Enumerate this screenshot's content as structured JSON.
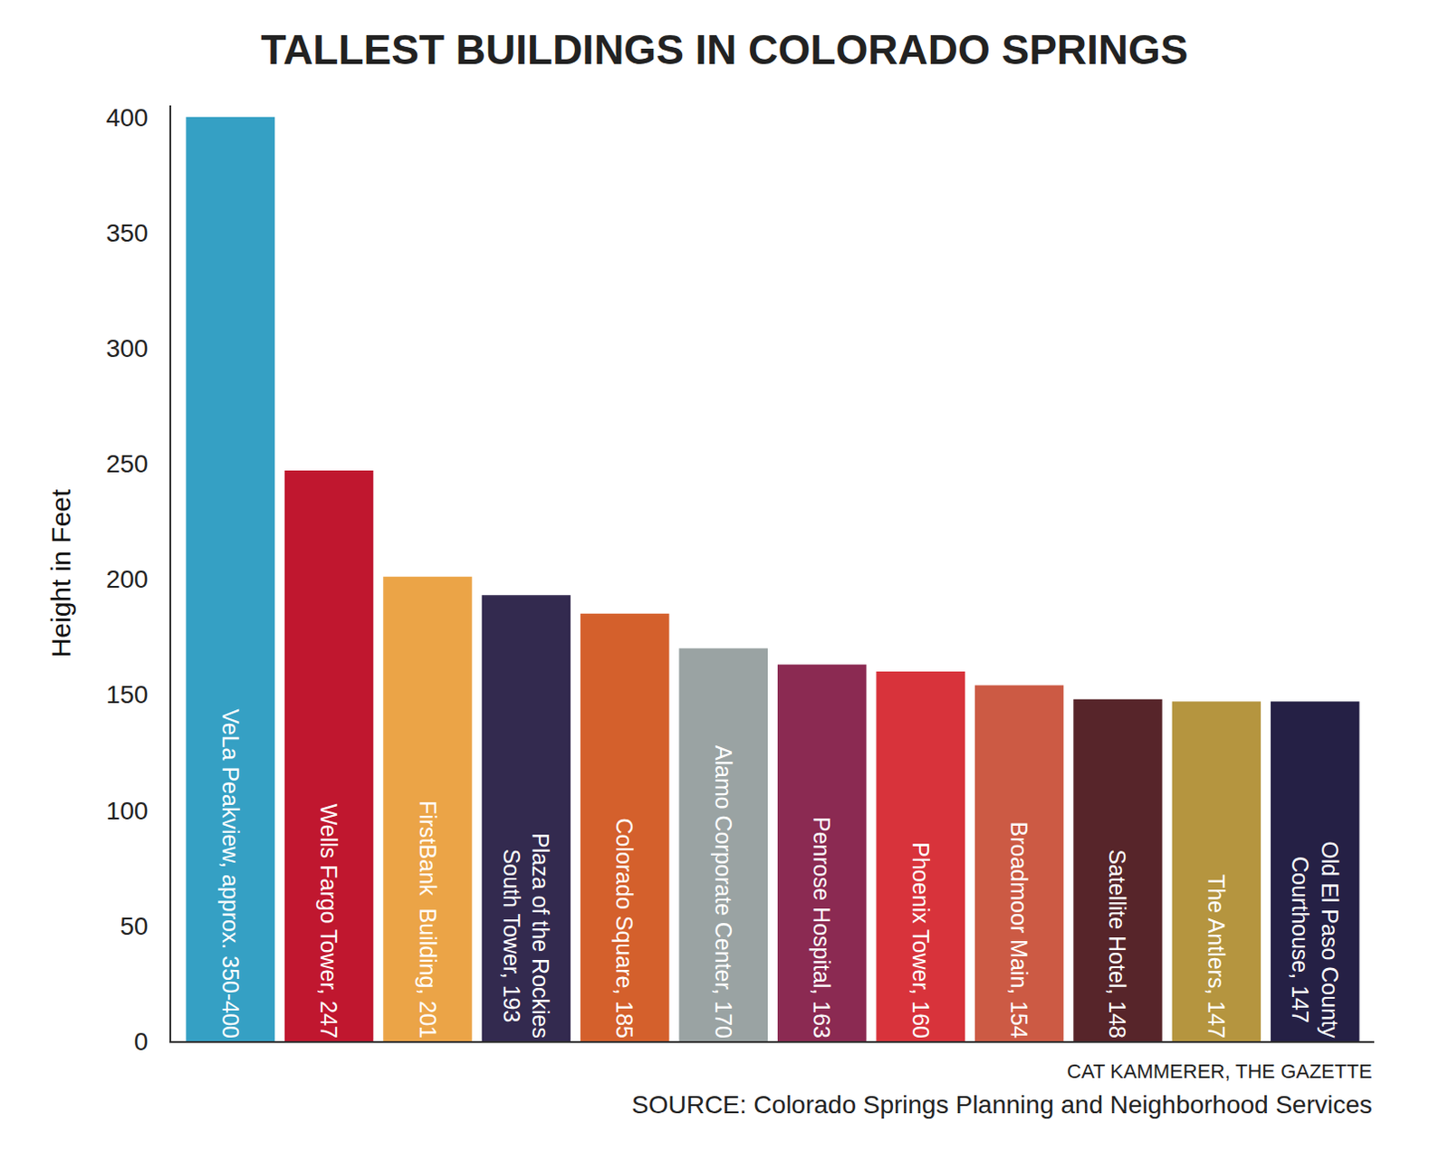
{
  "chart_data": {
    "type": "bar",
    "title": "TALLEST BUILDINGS IN COLORADO SPRINGS",
    "y_label": "Height in Feet",
    "categories": [
      "VeLa Peakview, approx. 350-400",
      "Wells Fargo Tower, 247",
      "FirstBank  Building, 201",
      "Plaza of the Rockies South Tower, 193",
      "Colorado Square, 185",
      "Alamo Corporate Center, 170",
      "Penrose Hospital, 163",
      "Phoenix Tower, 160",
      "Broadmoor Main, 154",
      "Satellite Hotel, 148",
      "The Antlers, 147",
      "Old El Paso County Courthouse, 147"
    ],
    "values": [
      400,
      247,
      201,
      193,
      185,
      170,
      163,
      160,
      154,
      148,
      147,
      147
    ],
    "colors": [
      "#35a0c4",
      "#c0172f",
      "#eba447",
      "#332a4f",
      "#d4602c",
      "#9aa3a3",
      "#8b2a52",
      "#d8333b",
      "#cc5a44",
      "#57252a",
      "#b5953f",
      "#252045"
    ],
    "ylim": [
      0,
      405
    ],
    "yticks": [
      0,
      50,
      100,
      150,
      200,
      250,
      300,
      350,
      400
    ],
    "grid": false,
    "tick_labels": "y",
    "credit": "CAT KAMMERER, THE GAZETTE",
    "source": "SOURCE: Colorado Springs Planning and Neighborhood Services"
  }
}
